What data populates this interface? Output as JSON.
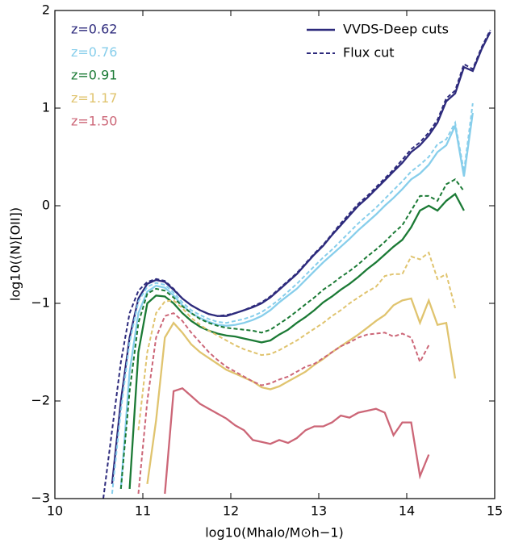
{
  "chart_data": {
    "type": "line",
    "xlabel": "log10(Mhalo/M⊙h−1)",
    "ylabel": "log10(⟨N⟩[OII])",
    "line_styles": {
      "solid": "VVDS-Deep cuts",
      "dashed": "Flux cut"
    },
    "xlim": [
      10,
      15
    ],
    "ylim": [
      -3,
      2
    ],
    "xticks": [
      10,
      11,
      12,
      13,
      14,
      15
    ],
    "yticks": [
      {
        "value": -3,
        "label": "−3"
      },
      {
        "value": -2,
        "label": "−2"
      },
      {
        "value": -1,
        "label": "−1"
      },
      0,
      1,
      2
    ],
    "x": [
      10.55,
      10.65,
      10.75,
      10.85,
      10.95,
      11.05,
      11.15,
      11.25,
      11.35,
      11.45,
      11.55,
      11.65,
      11.75,
      11.85,
      11.95,
      12.05,
      12.15,
      12.25,
      12.35,
      12.45,
      12.55,
      12.65,
      12.75,
      12.85,
      12.95,
      13.05,
      13.15,
      13.25,
      13.35,
      13.45,
      13.55,
      13.65,
      13.75,
      13.85,
      13.95,
      14.05,
      14.15,
      14.25,
      14.35,
      14.45,
      14.55,
      14.65,
      14.75,
      14.85,
      14.95
    ],
    "series": [
      {
        "name": "z=0.62",
        "color": "#2d2a7c",
        "values": [
          null,
          -2.85,
          -2.0,
          -1.35,
          -0.95,
          -0.8,
          -0.76,
          -0.78,
          -0.86,
          -0.95,
          -1.02,
          -1.07,
          -1.11,
          -1.13,
          -1.13,
          -1.1,
          -1.07,
          -1.04,
          -1.0,
          -0.94,
          -0.86,
          -0.78,
          -0.7,
          -0.6,
          -0.5,
          -0.41,
          -0.3,
          -0.2,
          -0.1,
          0.0,
          0.08,
          0.17,
          0.26,
          0.35,
          0.44,
          0.55,
          0.62,
          0.72,
          0.85,
          1.07,
          1.15,
          1.42,
          1.38,
          1.6,
          1.78
        ],
        "flux_cut_values": [
          -3.0,
          -2.3,
          -1.6,
          -1.1,
          -0.87,
          -0.78,
          -0.75,
          -0.77,
          -0.85,
          -0.95,
          -1.02,
          -1.07,
          -1.11,
          -1.13,
          -1.12,
          -1.1,
          -1.07,
          -1.03,
          -0.99,
          -0.93,
          -0.85,
          -0.77,
          -0.69,
          -0.59,
          -0.49,
          -0.4,
          -0.29,
          -0.18,
          -0.08,
          0.02,
          0.1,
          0.19,
          0.28,
          0.37,
          0.47,
          0.58,
          0.65,
          0.75,
          0.88,
          1.1,
          1.18,
          1.45,
          1.4,
          1.62,
          1.8
        ]
      },
      {
        "name": "z=0.76",
        "color": "#87ceeb",
        "values": [
          null,
          null,
          -2.9,
          -1.7,
          -1.1,
          -0.88,
          -0.82,
          -0.84,
          -0.92,
          -1.02,
          -1.1,
          -1.15,
          -1.19,
          -1.22,
          -1.23,
          -1.22,
          -1.2,
          -1.17,
          -1.13,
          -1.07,
          -0.99,
          -0.92,
          -0.85,
          -0.76,
          -0.67,
          -0.58,
          -0.5,
          -0.42,
          -0.34,
          -0.25,
          -0.17,
          -0.09,
          0.0,
          0.08,
          0.17,
          0.27,
          0.33,
          0.42,
          0.55,
          0.62,
          0.82,
          0.3,
          0.95,
          null,
          null
        ],
        "flux_cut_values": [
          null,
          -2.95,
          -2.1,
          -1.4,
          -0.98,
          -0.83,
          -0.79,
          -0.81,
          -0.89,
          -0.99,
          -1.07,
          -1.12,
          -1.16,
          -1.19,
          -1.2,
          -1.18,
          -1.16,
          -1.13,
          -1.09,
          -1.03,
          -0.96,
          -0.88,
          -0.8,
          -0.71,
          -0.62,
          -0.53,
          -0.45,
          -0.36,
          -0.27,
          -0.18,
          -0.1,
          -0.02,
          0.07,
          0.16,
          0.25,
          0.35,
          0.42,
          0.5,
          0.63,
          0.68,
          0.85,
          0.35,
          1.05,
          null,
          null
        ]
      },
      {
        "name": "z=0.91",
        "color": "#1b7a35",
        "values": [
          null,
          null,
          null,
          -2.9,
          -1.5,
          -1.0,
          -0.92,
          -0.93,
          -1.0,
          -1.1,
          -1.18,
          -1.24,
          -1.28,
          -1.31,
          -1.33,
          -1.34,
          -1.36,
          -1.38,
          -1.4,
          -1.38,
          -1.32,
          -1.27,
          -1.2,
          -1.14,
          -1.07,
          -0.99,
          -0.93,
          -0.86,
          -0.8,
          -0.73,
          -0.65,
          -0.58,
          -0.5,
          -0.42,
          -0.35,
          -0.22,
          -0.05,
          0.0,
          -0.05,
          0.05,
          0.12,
          -0.05,
          null,
          null,
          null
        ],
        "flux_cut_values": [
          null,
          null,
          -2.9,
          -1.9,
          -1.2,
          -0.9,
          -0.85,
          -0.87,
          -0.94,
          -1.03,
          -1.1,
          -1.16,
          -1.2,
          -1.23,
          -1.25,
          -1.26,
          -1.27,
          -1.28,
          -1.3,
          -1.27,
          -1.21,
          -1.15,
          -1.08,
          -1.01,
          -0.94,
          -0.86,
          -0.8,
          -0.73,
          -0.67,
          -0.6,
          -0.52,
          -0.45,
          -0.37,
          -0.28,
          -0.2,
          -0.05,
          0.1,
          0.1,
          0.05,
          0.22,
          0.27,
          0.15,
          null,
          null,
          null
        ]
      },
      {
        "name": "z=1.17",
        "color": "#e0c46f",
        "values": [
          null,
          null,
          null,
          null,
          null,
          -2.85,
          -2.2,
          -1.35,
          -1.2,
          -1.3,
          -1.42,
          -1.5,
          -1.56,
          -1.62,
          -1.68,
          -1.72,
          -1.76,
          -1.8,
          -1.86,
          -1.88,
          -1.85,
          -1.8,
          -1.75,
          -1.7,
          -1.63,
          -1.57,
          -1.5,
          -1.44,
          -1.38,
          -1.32,
          -1.25,
          -1.18,
          -1.12,
          -1.02,
          -0.97,
          -0.95,
          -1.2,
          -0.97,
          -1.22,
          -1.2,
          -1.77,
          null,
          null,
          null,
          null
        ],
        "flux_cut_values": [
          null,
          null,
          null,
          null,
          -2.3,
          -1.5,
          -1.1,
          -0.98,
          -0.97,
          -1.05,
          -1.15,
          -1.22,
          -1.28,
          -1.33,
          -1.38,
          -1.43,
          -1.47,
          -1.5,
          -1.53,
          -1.52,
          -1.48,
          -1.43,
          -1.38,
          -1.32,
          -1.26,
          -1.2,
          -1.13,
          -1.07,
          -1.0,
          -0.94,
          -0.88,
          -0.83,
          -0.72,
          -0.7,
          -0.7,
          -0.52,
          -0.55,
          -0.48,
          -0.75,
          -0.7,
          -1.05,
          null,
          null,
          null,
          null
        ]
      },
      {
        "name": "z=1.50",
        "color": "#cc6677",
        "values": [
          null,
          null,
          null,
          null,
          null,
          null,
          null,
          -2.95,
          -1.9,
          -1.87,
          -1.95,
          -2.03,
          -2.08,
          -2.13,
          -2.18,
          -2.25,
          -2.3,
          -2.4,
          -2.42,
          -2.44,
          -2.4,
          -2.43,
          -2.38,
          -2.3,
          -2.26,
          -2.26,
          -2.22,
          -2.15,
          -2.17,
          -2.12,
          -2.1,
          -2.08,
          -2.12,
          -2.35,
          -2.22,
          -2.22,
          -2.77,
          -2.55,
          null,
          null,
          null,
          null,
          null,
          null,
          null
        ],
        "flux_cut_values": [
          null,
          null,
          null,
          null,
          -2.95,
          -2.0,
          -1.35,
          -1.13,
          -1.1,
          -1.18,
          -1.3,
          -1.4,
          -1.5,
          -1.58,
          -1.65,
          -1.7,
          -1.75,
          -1.8,
          -1.84,
          -1.82,
          -1.78,
          -1.75,
          -1.7,
          -1.65,
          -1.62,
          -1.56,
          -1.5,
          -1.44,
          -1.4,
          -1.35,
          -1.32,
          -1.31,
          -1.3,
          -1.34,
          -1.31,
          -1.35,
          -1.6,
          -1.43,
          null,
          null,
          null,
          null,
          null,
          null,
          null
        ]
      }
    ]
  }
}
